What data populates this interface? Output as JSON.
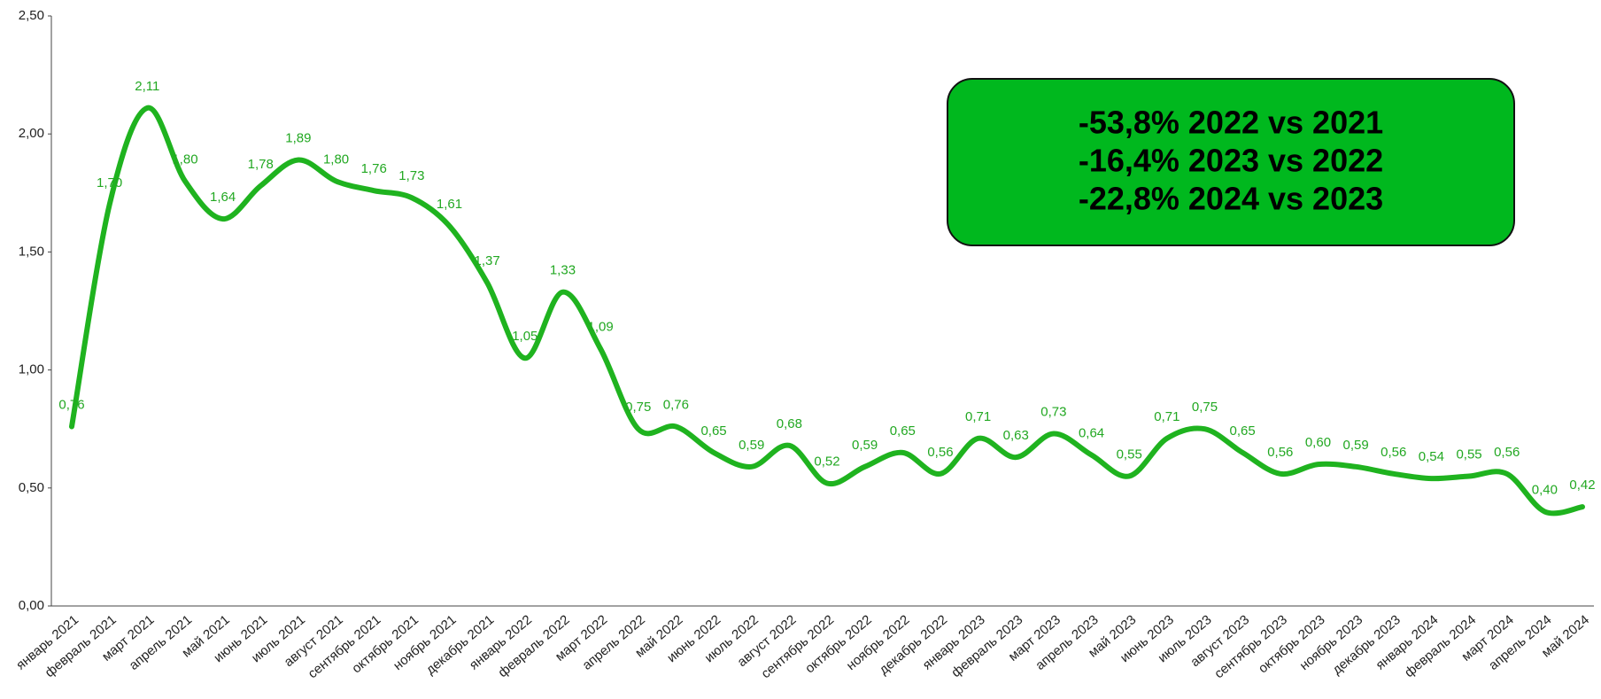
{
  "chart_data": {
    "type": "line",
    "categories": [
      "январь 2021",
      "февраль 2021",
      "март 2021",
      "апрель 2021",
      "май 2021",
      "июнь 2021",
      "июль 2021",
      "август 2021",
      "сентябрь 2021",
      "октябрь 2021",
      "ноябрь 2021",
      "декабрь 2021",
      "январь 2022",
      "февраль 2022",
      "март 2022",
      "апрель 2022",
      "май 2022",
      "июнь 2022",
      "июль 2022",
      "август 2022",
      "сентябрь 2022",
      "октябрь 2022",
      "ноябрь 2022",
      "декабрь 2022",
      "январь 2023",
      "февраль 2023",
      "март 2023",
      "апрель 2023",
      "май 2023",
      "июнь 2023",
      "июль 2023",
      "август 2023",
      "сентябрь 2023",
      "октябрь 2023",
      "ноябрь 2023",
      "декабрь 2023",
      "январь 2024",
      "февраль 2024",
      "март 2024",
      "апрель 2024",
      "май 2024"
    ],
    "values": [
      0.76,
      1.7,
      2.11,
      1.8,
      1.64,
      1.78,
      1.89,
      1.8,
      1.76,
      1.73,
      1.61,
      1.37,
      1.05,
      1.33,
      1.09,
      0.75,
      0.76,
      0.65,
      0.59,
      0.68,
      0.52,
      0.59,
      0.65,
      0.56,
      0.71,
      0.63,
      0.73,
      0.64,
      0.55,
      0.71,
      0.75,
      0.65,
      0.56,
      0.6,
      0.59,
      0.56,
      0.54,
      0.55,
      0.56,
      0.4,
      0.42
    ],
    "value_labels": [
      "0,76",
      "1,70",
      "2,11",
      "1,80",
      "1,64",
      "1,78",
      "1,89",
      "1,80",
      "1,76",
      "1,73",
      "1,61",
      "1,37",
      "1,05",
      "1,33",
      "1,09",
      "0,75",
      "0,76",
      "0,65",
      "0,59",
      "0,68",
      "0,52",
      "0,59",
      "0,65",
      "0,56",
      "0,71",
      "0,63",
      "0,73",
      "0,64",
      "0,55",
      "0,71",
      "0,75",
      "0,65",
      "0,56",
      "0,60",
      "0,59",
      "0,56",
      "0,54",
      "0,55",
      "0,56",
      "0,40",
      "0,42"
    ],
    "color": "#1fb31f",
    "ylim": [
      0,
      2.5
    ],
    "yticks": [
      {
        "value": 0,
        "label": "0,00"
      },
      {
        "value": 0.5,
        "label": "0,50"
      },
      {
        "value": 1,
        "label": "1,00"
      },
      {
        "value": 1.5,
        "label": "1,50"
      },
      {
        "value": 2,
        "label": "2,00"
      },
      {
        "value": 2.5,
        "label": "2,50"
      }
    ],
    "annotations": [
      "-53,8% 2022 vs 2021",
      "-16,4% 2023 vs 2022",
      "-22,8% 2024 vs 2023"
    ]
  }
}
